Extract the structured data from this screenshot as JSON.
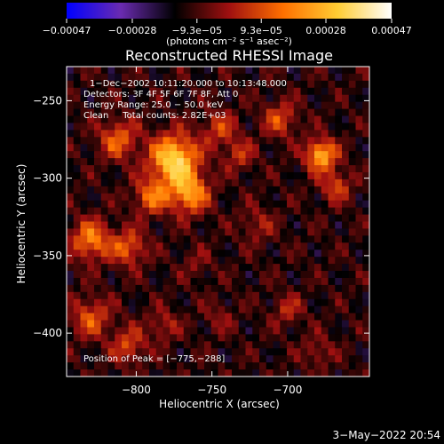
{
  "chart_data": {
    "type": "heatmap",
    "title": "Reconstructed RHESSI Image",
    "xlabel": "Heliocentric X (arcsec)",
    "ylabel": "Heliocentric Y (arcsec)",
    "xlim": [
      -846,
      -646
    ],
    "ylim": [
      -428,
      -228
    ],
    "x_ticks": [
      -800,
      -750,
      -700
    ],
    "x_tick_labels": [
      "−800",
      "−750",
      "−700"
    ],
    "y_ticks": [
      -250,
      -300,
      -350,
      -400
    ],
    "y_tick_labels": [
      "−250",
      "−300",
      "−350",
      "−400"
    ],
    "colorbar": {
      "min": -0.00047,
      "max": 0.00047,
      "ticks": [
        -0.00047,
        -0.00028,
        -9.3e-05,
        9.3e-05,
        0.00028,
        0.00047
      ],
      "tick_labels": [
        "−0.00047",
        "−0.00028",
        "−9.3e−05",
        "9.3e−05",
        "0.00028",
        "0.00047"
      ],
      "unit_label": "(photons cm⁻² s⁻¹ asec⁻²)",
      "colormap": [
        "#0000ff",
        "#6a2bb0",
        "#000000",
        "#a01010",
        "#ff7000",
        "#ffcc33",
        "#ffffff"
      ]
    },
    "annotations": [
      "1−Dec−2002 10:11:20.000 to 10:13:48.000",
      "Detectors: 3F 4F 5F 6F 7F 8F, Att 0",
      "Energy Range: 25.0 − 50.0 keV",
      "Clean     Total counts: 2.82E+03"
    ],
    "peak_label": "Position of Peak = [−775,−288]",
    "peak": {
      "x": -775,
      "y": -288
    },
    "sources": [
      {
        "x": -775,
        "y": -288,
        "width": 11,
        "intensity": 0.00047
      },
      {
        "x": -765,
        "y": -310,
        "width": 9,
        "intensity": 0.00034
      },
      {
        "x": -790,
        "y": -312,
        "width": 8,
        "intensity": 0.00026
      },
      {
        "x": -812,
        "y": -275,
        "width": 9,
        "intensity": 0.00024
      },
      {
        "x": -830,
        "y": -340,
        "width": 9,
        "intensity": 0.0003
      },
      {
        "x": -805,
        "y": -345,
        "width": 8,
        "intensity": 0.00024
      },
      {
        "x": -745,
        "y": -268,
        "width": 8,
        "intensity": 0.00018
      },
      {
        "x": -732,
        "y": -285,
        "width": 7,
        "intensity": 0.00016
      },
      {
        "x": -705,
        "y": -262,
        "width": 8,
        "intensity": 0.0002
      },
      {
        "x": -678,
        "y": -285,
        "width": 7,
        "intensity": 0.0004
      },
      {
        "x": -668,
        "y": -305,
        "width": 7,
        "intensity": 0.0002
      },
      {
        "x": -830,
        "y": -390,
        "width": 9,
        "intensity": 0.00022
      },
      {
        "x": -805,
        "y": -408,
        "width": 8,
        "intensity": 0.0002
      },
      {
        "x": -782,
        "y": -395,
        "width": 7,
        "intensity": 0.00014
      },
      {
        "x": -720,
        "y": -330,
        "width": 8,
        "intensity": 0.00012
      },
      {
        "x": -700,
        "y": -385,
        "width": 7,
        "intensity": 0.00014
      },
      {
        "x": -680,
        "y": -412,
        "width": 7,
        "intensity": 0.00012
      },
      {
        "x": -760,
        "y": -355,
        "width": 7,
        "intensity": 8e-05
      },
      {
        "x": -745,
        "y": -390,
        "width": 7,
        "intensity": 9e-05
      }
    ],
    "grid": false
  },
  "timestamp": "3−May−2022 20:54"
}
